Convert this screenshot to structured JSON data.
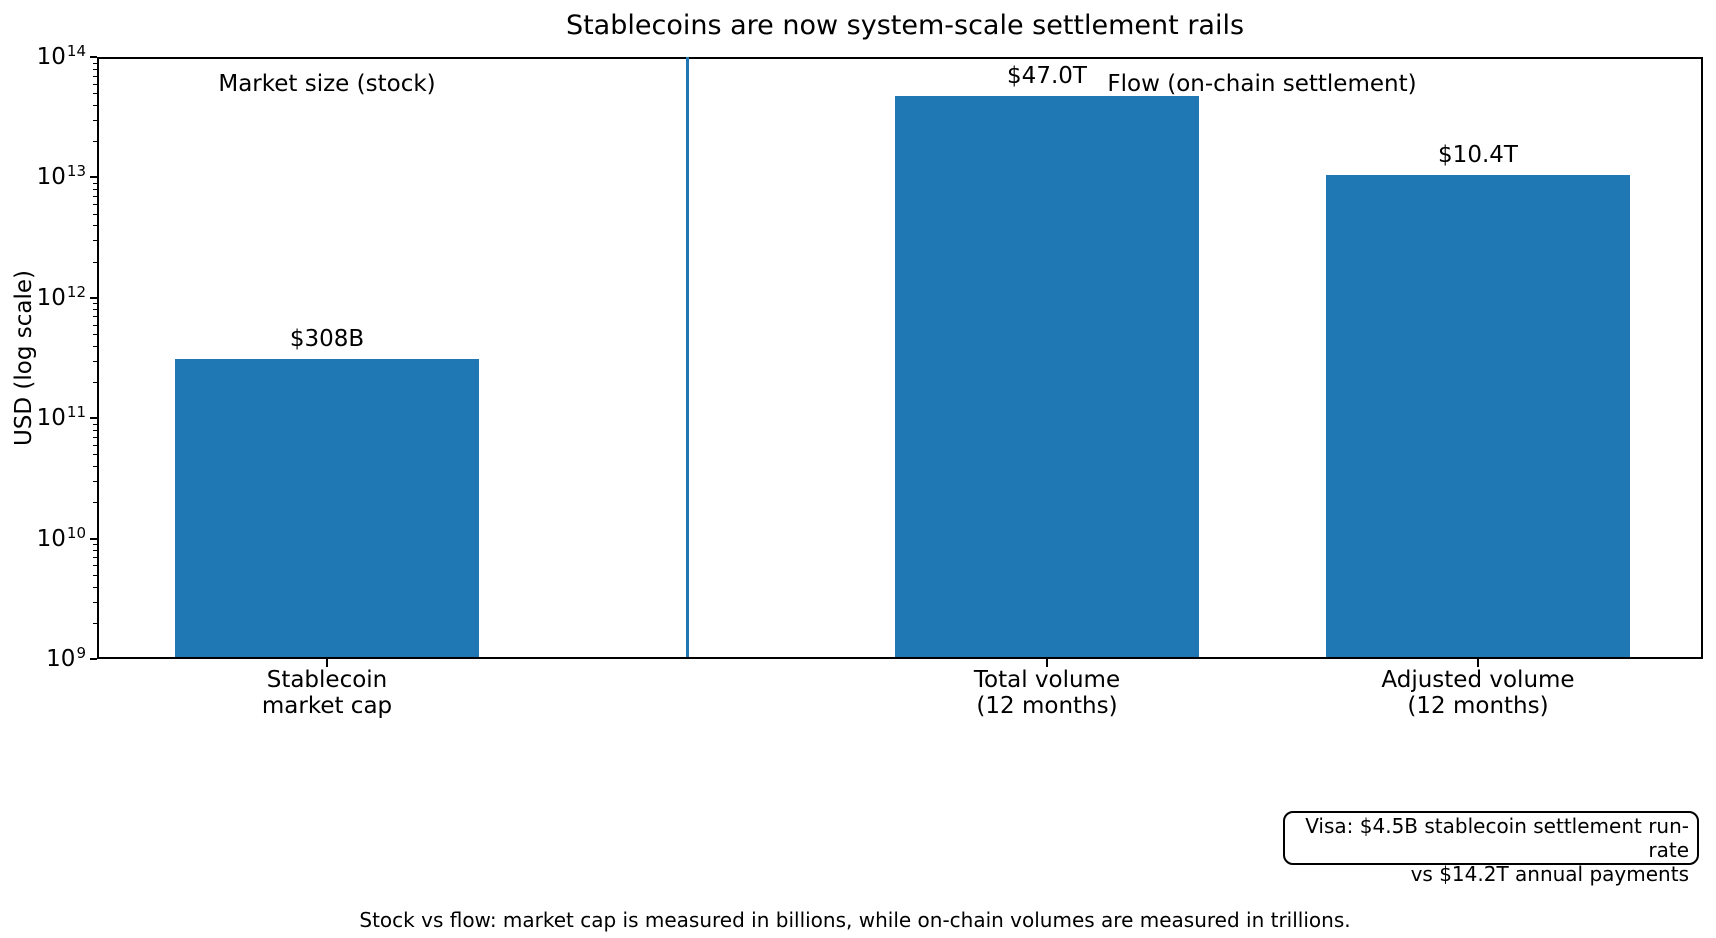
{
  "figure": {
    "caption": "Stock vs flow: market cap is measured in billions, while on-chain volumes are measured in trillions."
  },
  "annotation_box": {
    "line1": "Visa: $4.5B stablecoin settlement run-rate",
    "line2": "vs $14.2T annual payments"
  },
  "chart_data": {
    "type": "bar",
    "title": "Stablecoins are now system-scale settlement rails",
    "ylabel": "USD (log scale)",
    "yscale": "log",
    "ylim": [
      1000000000,
      100000000000000
    ],
    "ytick_base": "10",
    "ytick_exponents": [
      9,
      10,
      11,
      12,
      13,
      14
    ],
    "categories": [
      "Stablecoin\nmarket cap",
      "Total volume\n(12 months)",
      "Adjusted volume\n(12 months)"
    ],
    "values": [
      308000000000,
      47000000000000,
      10400000000000
    ],
    "bar_labels": [
      "$308B",
      "$47.0T",
      "$10.4T"
    ],
    "group_labels": [
      "Market size (stock)",
      "Flow (on-chain settlement)"
    ],
    "bar_color": "#1f77b4",
    "divider_color": "#1f77b4",
    "grid": false,
    "legend": "none"
  }
}
